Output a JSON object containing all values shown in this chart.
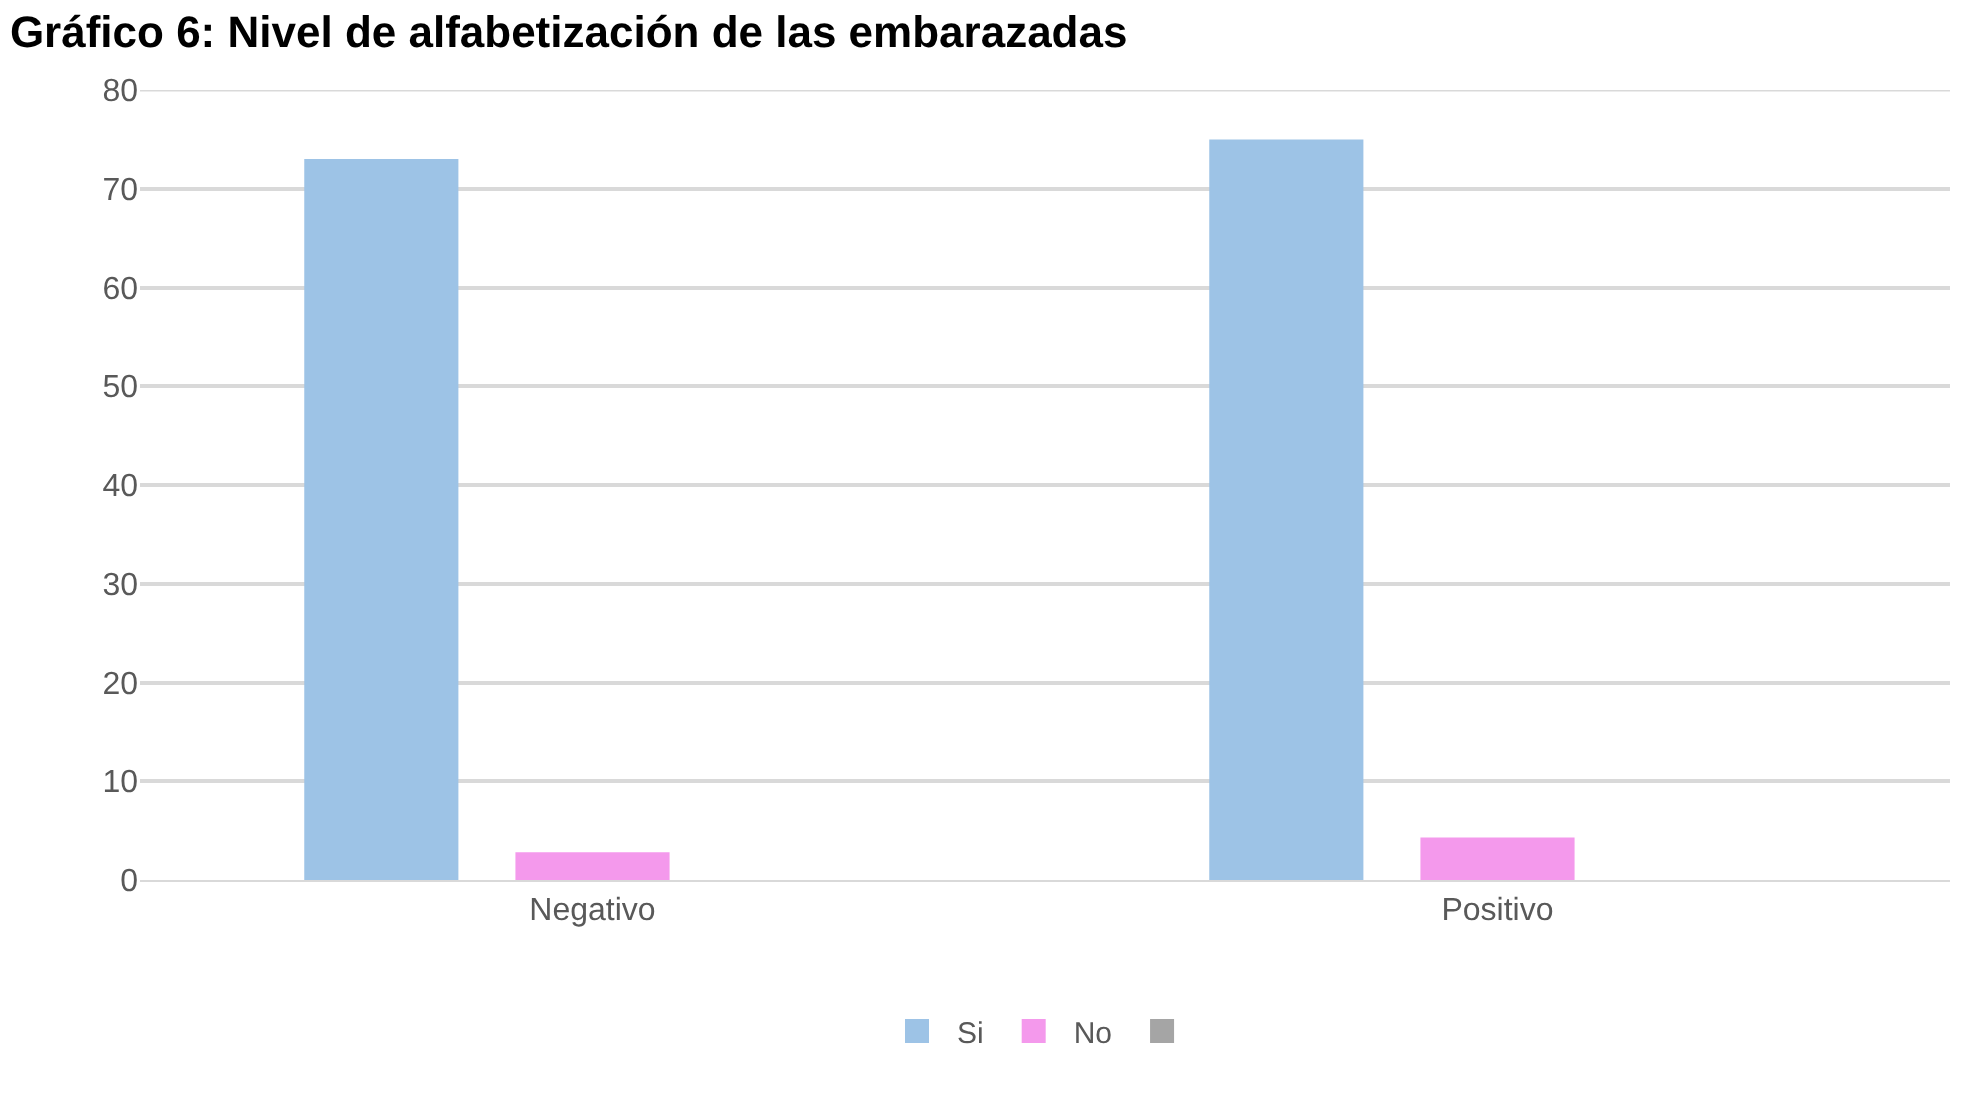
{
  "chart_data": {
    "type": "bar",
    "title": "Gráfico 6: Nivel de alfabetización de las embarazadas",
    "categories": [
      "Negativo",
      "Positivo"
    ],
    "series": [
      {
        "name": "Si",
        "color": "#9dc3e6",
        "values": [
          73,
          75
        ]
      },
      {
        "name": "No",
        "color": "#f499ec",
        "values": [
          2.8,
          4.3
        ]
      },
      {
        "color": "#a5a5a5",
        "values": [
          null,
          null
        ]
      }
    ],
    "ylim": [
      0,
      80
    ],
    "yticks": [
      0,
      10,
      20,
      30,
      40,
      50,
      60,
      70,
      80
    ],
    "grid": "y",
    "legend": "bottom"
  }
}
